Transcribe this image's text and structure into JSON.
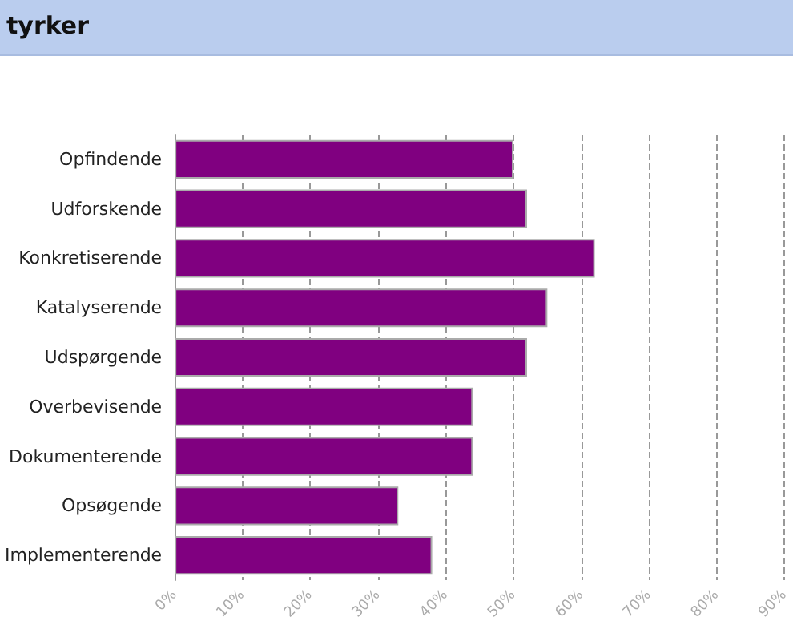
{
  "chart_data": {
    "type": "bar",
    "orientation": "horizontal",
    "title": "tyrker",
    "categories": [
      "Opfindende",
      "Udforskende",
      "Konkretiserende",
      "Katalyserende",
      "Udspørgende",
      "Overbevisende",
      "Dokumenterende",
      "Opsøgende",
      "Implementerende"
    ],
    "values": [
      50,
      52,
      62,
      55,
      52,
      44,
      44,
      33,
      38
    ],
    "color": "#800080",
    "xlim": [
      0,
      90
    ],
    "xticks": [
      {
        "value": 0,
        "label": "0%"
      },
      {
        "value": 10,
        "label": "10%"
      },
      {
        "value": 20,
        "label": "20%"
      },
      {
        "value": 30,
        "label": "30%"
      },
      {
        "value": 40,
        "label": "40%"
      },
      {
        "value": 50,
        "label": "50%"
      },
      {
        "value": 60,
        "label": "60%"
      },
      {
        "value": 70,
        "label": "70%"
      },
      {
        "value": 80,
        "label": "80%"
      },
      {
        "value": 90,
        "label": "90%"
      }
    ],
    "grid": "x"
  }
}
